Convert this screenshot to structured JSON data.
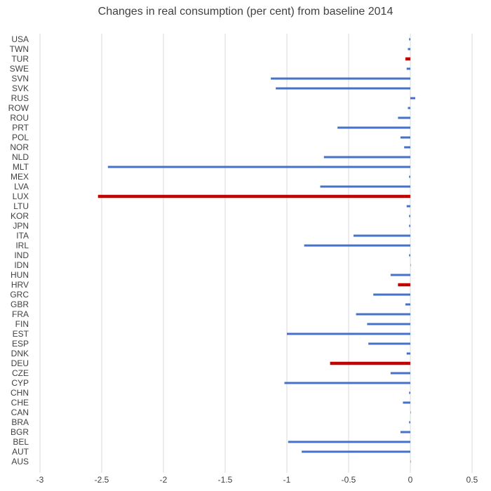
{
  "chart_data": {
    "type": "bar",
    "orientation": "horizontal",
    "title": "Changes in real consumption (per cent) from baseline 2014",
    "xlabel": "",
    "ylabel": "",
    "xlim": [
      -3,
      0.5
    ],
    "x_ticks": [
      -3,
      -2.5,
      -2,
      -1.5,
      -1,
      -0.5,
      0,
      0.5
    ],
    "x_tick_labels": [
      "-3",
      "-2.5",
      "-2",
      "-1.5",
      "-1",
      "-0.5",
      "0",
      "0.5"
    ],
    "grid": "vertical",
    "legend": "none",
    "colors": {
      "default": "#4472C4",
      "highlight": "#C00000"
    },
    "categories": [
      "USA",
      "TWN",
      "TUR",
      "SWE",
      "SVN",
      "SVK",
      "RUS",
      "ROW",
      "ROU",
      "PRT",
      "POL",
      "NOR",
      "NLD",
      "MLT",
      "MEX",
      "LVA",
      "LUX",
      "LTU",
      "KOR",
      "JPN",
      "ITA",
      "IRL",
      "IND",
      "IDN",
      "HUN",
      "HRV",
      "GRC",
      "GBR",
      "FRA",
      "FIN",
      "EST",
      "ESP",
      "DNK",
      "DEU",
      "CZE",
      "CYP",
      "CHN",
      "CHE",
      "CAN",
      "BRA",
      "BGR",
      "BEL",
      "AUT",
      "AUS"
    ],
    "values": [
      -0.01,
      -0.02,
      -0.04,
      -0.03,
      -1.13,
      -1.09,
      0.04,
      -0.02,
      -0.1,
      -0.59,
      -0.08,
      -0.05,
      -0.7,
      -2.45,
      -0.01,
      -0.73,
      -2.53,
      -0.03,
      -0.01,
      -0.01,
      -0.46,
      -0.86,
      -0.01,
      0,
      -0.16,
      -0.1,
      -0.3,
      -0.04,
      -0.44,
      -0.35,
      -1.0,
      -0.34,
      -0.03,
      -0.65,
      -0.16,
      -1.02,
      -0.01,
      -0.06,
      0,
      -0.01,
      -0.08,
      -0.99,
      -0.88,
      0
    ],
    "highlighted": [
      "TUR",
      "LUX",
      "HRV",
      "DEU"
    ]
  }
}
